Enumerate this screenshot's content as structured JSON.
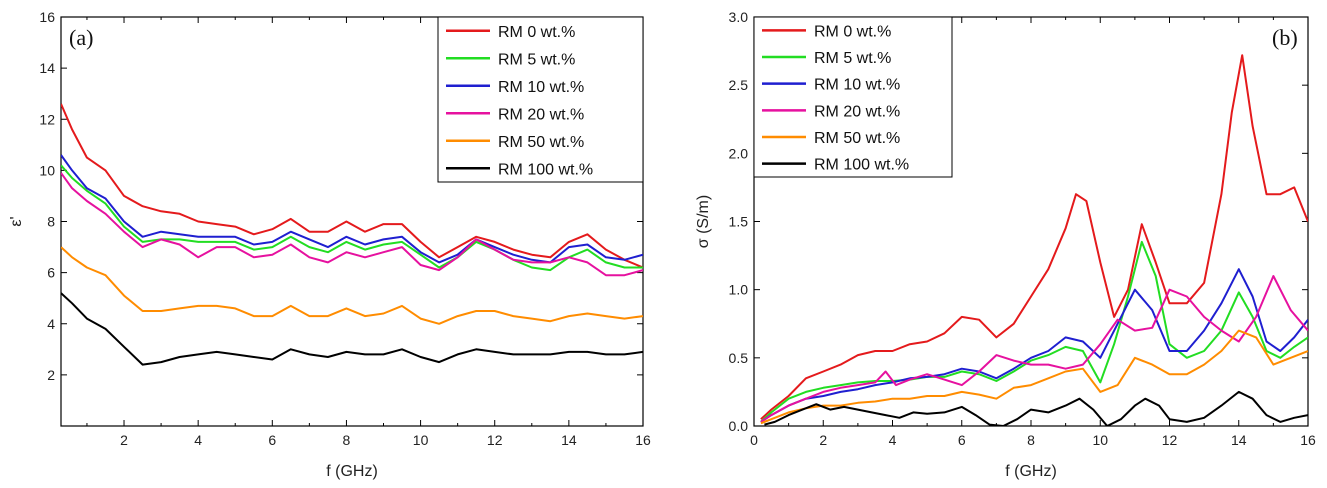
{
  "chart_data": [
    {
      "type": "line",
      "panel_label": "(a)",
      "xlabel": "f (GHz)",
      "ylabel": "ε'",
      "xlim": [
        0.3,
        16
      ],
      "ylim": [
        0,
        16
      ],
      "x_ticks": [
        2,
        4,
        6,
        8,
        10,
        12,
        14,
        16
      ],
      "y_ticks": [
        2,
        4,
        6,
        8,
        10,
        12,
        14,
        16
      ],
      "legend_position": "top-right",
      "series": [
        {
          "name": "RM 0 wt.%",
          "color": "#e41a1c",
          "x": [
            0.3,
            0.6,
            1.0,
            1.5,
            2.0,
            2.5,
            3.0,
            3.5,
            4.0,
            4.5,
            5.0,
            5.5,
            6.0,
            6.5,
            7.0,
            7.5,
            8.0,
            8.5,
            9.0,
            9.5,
            10.0,
            10.5,
            11.0,
            11.5,
            12.0,
            12.5,
            13.0,
            13.5,
            14.0,
            14.5,
            15.0,
            15.5,
            16.0
          ],
          "y": [
            12.6,
            11.6,
            10.5,
            10.0,
            9.0,
            8.6,
            8.4,
            8.3,
            8.0,
            7.9,
            7.8,
            7.5,
            7.7,
            8.1,
            7.6,
            7.6,
            8.0,
            7.6,
            7.9,
            7.9,
            7.2,
            6.6,
            7.0,
            7.4,
            7.2,
            6.9,
            6.7,
            6.6,
            7.2,
            7.5,
            6.9,
            6.5,
            6.2
          ]
        },
        {
          "name": "RM 5 wt.%",
          "color": "#22dd22",
          "x": [
            0.3,
            0.6,
            1.0,
            1.5,
            2.0,
            2.5,
            3.0,
            3.5,
            4.0,
            4.5,
            5.0,
            5.5,
            6.0,
            6.5,
            7.0,
            7.5,
            8.0,
            8.5,
            9.0,
            9.5,
            10.0,
            10.5,
            11.0,
            11.5,
            12.0,
            12.5,
            13.0,
            13.5,
            14.0,
            14.5,
            15.0,
            15.5,
            16.0
          ],
          "y": [
            10.2,
            9.7,
            9.2,
            8.7,
            7.8,
            7.2,
            7.3,
            7.3,
            7.2,
            7.2,
            7.2,
            6.9,
            7.0,
            7.4,
            7.0,
            6.8,
            7.2,
            6.9,
            7.1,
            7.2,
            6.7,
            6.2,
            6.6,
            7.2,
            6.9,
            6.5,
            6.2,
            6.1,
            6.6,
            6.9,
            6.4,
            6.2,
            6.2
          ]
        },
        {
          "name": "RM 10 wt.%",
          "color": "#1f1fd0",
          "x": [
            0.3,
            0.6,
            1.0,
            1.5,
            2.0,
            2.5,
            3.0,
            3.5,
            4.0,
            4.5,
            5.0,
            5.5,
            6.0,
            6.5,
            7.0,
            7.5,
            8.0,
            8.5,
            9.0,
            9.5,
            10.0,
            10.5,
            11.0,
            11.5,
            12.0,
            12.5,
            13.0,
            13.5,
            14.0,
            14.5,
            15.0,
            15.5,
            16.0
          ],
          "y": [
            10.6,
            10.0,
            9.3,
            8.9,
            8.0,
            7.4,
            7.6,
            7.5,
            7.4,
            7.4,
            7.4,
            7.1,
            7.2,
            7.6,
            7.3,
            7.0,
            7.4,
            7.1,
            7.3,
            7.4,
            6.8,
            6.4,
            6.7,
            7.3,
            7.0,
            6.7,
            6.5,
            6.4,
            7.0,
            7.1,
            6.6,
            6.5,
            6.7
          ]
        },
        {
          "name": "RM 20 wt.%",
          "color": "#e6119f",
          "x": [
            0.3,
            0.6,
            1.0,
            1.5,
            2.0,
            2.5,
            3.0,
            3.5,
            4.0,
            4.5,
            5.0,
            5.5,
            6.0,
            6.5,
            7.0,
            7.5,
            8.0,
            8.5,
            9.0,
            9.5,
            10.0,
            10.5,
            11.0,
            11.5,
            12.0,
            12.5,
            13.0,
            13.5,
            14.0,
            14.5,
            15.0,
            15.5,
            16.0
          ],
          "y": [
            9.9,
            9.3,
            8.8,
            8.3,
            7.6,
            7.0,
            7.3,
            7.1,
            6.6,
            7.0,
            7.0,
            6.6,
            6.7,
            7.1,
            6.6,
            6.4,
            6.8,
            6.6,
            6.8,
            7.0,
            6.3,
            6.1,
            6.6,
            7.3,
            6.9,
            6.5,
            6.4,
            6.4,
            6.6,
            6.4,
            5.9,
            5.9,
            6.1
          ]
        },
        {
          "name": "RM 50 wt.%",
          "color": "#ff8c00",
          "x": [
            0.3,
            0.6,
            1.0,
            1.5,
            2.0,
            2.5,
            3.0,
            3.5,
            4.0,
            4.5,
            5.0,
            5.5,
            6.0,
            6.5,
            7.0,
            7.5,
            8.0,
            8.5,
            9.0,
            9.5,
            10.0,
            10.5,
            11.0,
            11.5,
            12.0,
            12.5,
            13.0,
            13.5,
            14.0,
            14.5,
            15.0,
            15.5,
            16.0
          ],
          "y": [
            7.0,
            6.6,
            6.2,
            5.9,
            5.1,
            4.5,
            4.5,
            4.6,
            4.7,
            4.7,
            4.6,
            4.3,
            4.3,
            4.7,
            4.3,
            4.3,
            4.6,
            4.3,
            4.4,
            4.7,
            4.2,
            4.0,
            4.3,
            4.5,
            4.5,
            4.3,
            4.2,
            4.1,
            4.3,
            4.4,
            4.3,
            4.2,
            4.3
          ]
        },
        {
          "name": "RM 100 wt.%",
          "color": "#000000",
          "x": [
            0.3,
            0.6,
            1.0,
            1.5,
            2.0,
            2.5,
            3.0,
            3.5,
            4.0,
            4.5,
            5.0,
            5.5,
            6.0,
            6.5,
            7.0,
            7.5,
            8.0,
            8.5,
            9.0,
            9.5,
            10.0,
            10.5,
            11.0,
            11.5,
            12.0,
            12.5,
            13.0,
            13.5,
            14.0,
            14.5,
            15.0,
            15.5,
            16.0
          ],
          "y": [
            5.2,
            4.8,
            4.2,
            3.8,
            3.1,
            2.4,
            2.5,
            2.7,
            2.8,
            2.9,
            2.8,
            2.7,
            2.6,
            3.0,
            2.8,
            2.7,
            2.9,
            2.8,
            2.8,
            3.0,
            2.7,
            2.5,
            2.8,
            3.0,
            2.9,
            2.8,
            2.8,
            2.8,
            2.9,
            2.9,
            2.8,
            2.8,
            2.9
          ]
        }
      ]
    },
    {
      "type": "line",
      "panel_label": "(b)",
      "xlabel": "f (GHz)",
      "ylabel": "σ (S/m)",
      "xlim": [
        0,
        16
      ],
      "ylim": [
        0,
        3.0
      ],
      "x_ticks": [
        0,
        2,
        4,
        6,
        8,
        10,
        12,
        14,
        16
      ],
      "y_ticks": [
        0.0,
        0.5,
        1.0,
        1.5,
        2.0,
        2.5,
        3.0
      ],
      "y_tick_labels": [
        "0.0",
        "0.5",
        "1.0",
        "1.5",
        "2.0",
        "2.5",
        "3.0"
      ],
      "legend_position": "top-left",
      "series": [
        {
          "name": "RM 0 wt.%",
          "color": "#e41a1c",
          "x": [
            0.2,
            0.5,
            1.0,
            1.5,
            2.0,
            2.5,
            3.0,
            3.5,
            4.0,
            4.5,
            5.0,
            5.5,
            6.0,
            6.5,
            7.0,
            7.5,
            8.0,
            8.5,
            9.0,
            9.3,
            9.6,
            10.0,
            10.4,
            10.8,
            11.2,
            11.6,
            12.0,
            12.5,
            13.0,
            13.5,
            13.8,
            14.1,
            14.4,
            14.8,
            15.2,
            15.6,
            16.0
          ],
          "y": [
            0.05,
            0.12,
            0.22,
            0.35,
            0.4,
            0.45,
            0.52,
            0.55,
            0.55,
            0.6,
            0.62,
            0.68,
            0.8,
            0.78,
            0.65,
            0.75,
            0.95,
            1.15,
            1.45,
            1.7,
            1.65,
            1.2,
            0.8,
            1.0,
            1.48,
            1.2,
            0.9,
            0.9,
            1.05,
            1.7,
            2.3,
            2.72,
            2.2,
            1.7,
            1.7,
            1.75,
            1.5
          ]
        },
        {
          "name": "RM 5 wt.%",
          "color": "#22dd22",
          "x": [
            0.2,
            0.5,
            1.0,
            1.5,
            2.0,
            2.5,
            3.0,
            3.5,
            4.0,
            4.5,
            5.0,
            5.5,
            6.0,
            6.5,
            7.0,
            7.5,
            8.0,
            8.5,
            9.0,
            9.5,
            10.0,
            10.4,
            10.8,
            11.2,
            11.6,
            12.0,
            12.5,
            13.0,
            13.5,
            14.0,
            14.4,
            14.8,
            15.2,
            15.6,
            16.0
          ],
          "y": [
            0.03,
            0.1,
            0.2,
            0.25,
            0.28,
            0.3,
            0.32,
            0.33,
            0.33,
            0.34,
            0.36,
            0.36,
            0.4,
            0.38,
            0.33,
            0.4,
            0.48,
            0.52,
            0.58,
            0.55,
            0.32,
            0.6,
            0.95,
            1.35,
            1.1,
            0.6,
            0.5,
            0.55,
            0.7,
            0.98,
            0.8,
            0.55,
            0.5,
            0.58,
            0.65
          ]
        },
        {
          "name": "RM 10 wt.%",
          "color": "#1f1fd0",
          "x": [
            0.2,
            0.5,
            1.0,
            1.5,
            2.0,
            2.5,
            3.0,
            3.5,
            4.0,
            4.5,
            5.0,
            5.5,
            6.0,
            6.5,
            7.0,
            7.5,
            8.0,
            8.5,
            9.0,
            9.5,
            10.0,
            10.5,
            11.0,
            11.5,
            12.0,
            12.5,
            13.0,
            13.5,
            14.0,
            14.4,
            14.8,
            15.2,
            15.6,
            16.0
          ],
          "y": [
            0.03,
            0.08,
            0.15,
            0.2,
            0.22,
            0.25,
            0.27,
            0.3,
            0.32,
            0.35,
            0.36,
            0.38,
            0.42,
            0.4,
            0.35,
            0.42,
            0.5,
            0.55,
            0.65,
            0.62,
            0.5,
            0.75,
            1.0,
            0.85,
            0.55,
            0.55,
            0.7,
            0.9,
            1.15,
            0.95,
            0.62,
            0.55,
            0.65,
            0.78
          ]
        },
        {
          "name": "RM 20 wt.%",
          "color": "#e6119f",
          "x": [
            0.2,
            0.5,
            1.0,
            1.5,
            2.0,
            2.5,
            3.0,
            3.5,
            3.8,
            4.1,
            4.5,
            5.0,
            5.5,
            6.0,
            6.5,
            7.0,
            7.5,
            8.0,
            8.5,
            9.0,
            9.5,
            10.0,
            10.5,
            11.0,
            11.5,
            12.0,
            12.5,
            13.0,
            13.5,
            14.0,
            14.5,
            15.0,
            15.5,
            16.0
          ],
          "y": [
            0.03,
            0.08,
            0.15,
            0.2,
            0.25,
            0.28,
            0.3,
            0.32,
            0.4,
            0.3,
            0.34,
            0.38,
            0.34,
            0.3,
            0.4,
            0.52,
            0.48,
            0.45,
            0.45,
            0.42,
            0.45,
            0.6,
            0.78,
            0.7,
            0.72,
            1.0,
            0.95,
            0.8,
            0.7,
            0.62,
            0.8,
            1.1,
            0.85,
            0.7
          ]
        },
        {
          "name": "RM 50 wt.%",
          "color": "#ff8c00",
          "x": [
            0.2,
            0.5,
            1.0,
            1.5,
            2.0,
            2.5,
            3.0,
            3.5,
            4.0,
            4.5,
            5.0,
            5.5,
            6.0,
            6.5,
            7.0,
            7.5,
            8.0,
            8.5,
            9.0,
            9.5,
            10.0,
            10.5,
            11.0,
            11.5,
            12.0,
            12.5,
            13.0,
            13.5,
            14.0,
            14.5,
            15.0,
            15.5,
            16.0
          ],
          "y": [
            0.02,
            0.05,
            0.1,
            0.13,
            0.15,
            0.15,
            0.17,
            0.18,
            0.2,
            0.2,
            0.22,
            0.22,
            0.25,
            0.23,
            0.2,
            0.28,
            0.3,
            0.35,
            0.4,
            0.42,
            0.25,
            0.3,
            0.5,
            0.45,
            0.38,
            0.38,
            0.45,
            0.55,
            0.7,
            0.65,
            0.45,
            0.5,
            0.55
          ]
        },
        {
          "name": "RM 100 wt.%",
          "color": "#000000",
          "x": [
            0.3,
            0.6,
            1.0,
            1.4,
            1.8,
            2.2,
            2.6,
            3.0,
            3.4,
            3.8,
            4.2,
            4.6,
            5.0,
            5.5,
            6.0,
            6.4,
            6.8,
            7.2,
            7.6,
            8.0,
            8.5,
            9.0,
            9.4,
            9.8,
            10.2,
            10.6,
            11.0,
            11.3,
            11.7,
            12.0,
            12.5,
            13.0,
            13.5,
            14.0,
            14.4,
            14.8,
            15.2,
            15.6,
            16.0
          ],
          "y": [
            0.01,
            0.03,
            0.08,
            0.12,
            0.16,
            0.12,
            0.14,
            0.12,
            0.1,
            0.08,
            0.06,
            0.1,
            0.09,
            0.1,
            0.14,
            0.08,
            0.01,
            0.0,
            0.05,
            0.12,
            0.1,
            0.15,
            0.2,
            0.12,
            0.0,
            0.05,
            0.15,
            0.2,
            0.15,
            0.05,
            0.03,
            0.06,
            0.15,
            0.25,
            0.2,
            0.08,
            0.03,
            0.06,
            0.08
          ]
        }
      ]
    }
  ]
}
